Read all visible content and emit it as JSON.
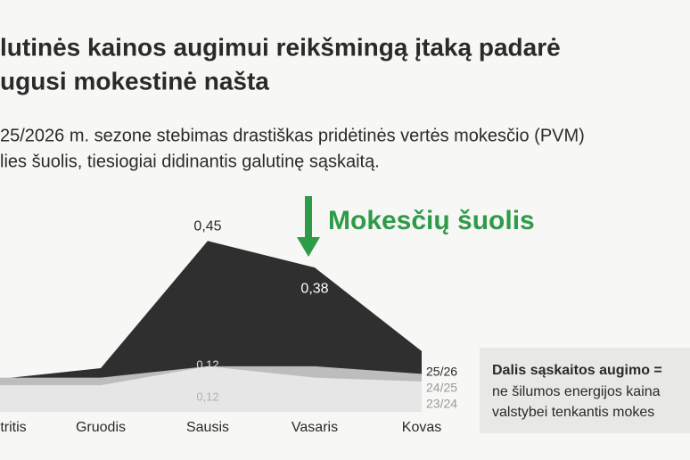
{
  "chart_data": {
    "type": "area",
    "title_lines": [
      "lutinės kainos augimui reikšmingą įtaką padarė",
      "ugusi mokestinė našta"
    ],
    "subtitle_lines": [
      "25/2026 m. sezone stebimas drastiškas pridėtinės vertės mokesčio (PVM)",
      "lies šuolis, tiesiogiai didinantis galutinę sąskaitą."
    ],
    "categories": [
      "tritis",
      "Gruodis",
      "Sausis",
      "Vasaris",
      "Kovas"
    ],
    "series": [
      {
        "name": "25/26",
        "color": "#2f2f2f",
        "values": [
          0.085,
          0.115,
          0.45,
          0.38,
          0.16
        ],
        "value_labels": [
          null,
          null,
          "0,45",
          "0,38",
          null
        ]
      },
      {
        "name": "24/25",
        "color": "#bdbdbd",
        "values": [
          0.09,
          0.09,
          0.12,
          0.12,
          0.1
        ],
        "value_labels": [
          null,
          null,
          "0,12",
          null,
          null
        ]
      },
      {
        "name": "23/24",
        "color": "#e6e6e6",
        "values": [
          0.07,
          0.07,
          0.12,
          0.09,
          0.08
        ],
        "value_labels": [
          null,
          null,
          "0,12",
          null,
          null
        ]
      }
    ],
    "ylim": [
      0,
      0.5
    ],
    "annotation": "Mokesčių šuolis",
    "annotation_color": "#2e9b48",
    "note_lines": [
      "Dalis sąskaitos augimo =",
      "ne šilumos energijos kaina",
      "valstybei tenkantis mokes"
    ]
  }
}
